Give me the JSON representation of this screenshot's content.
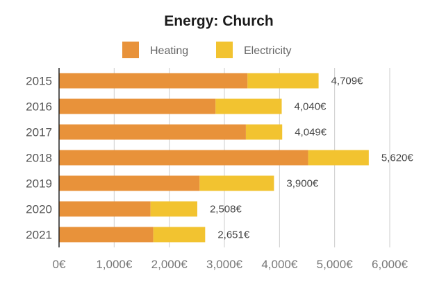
{
  "chart_data": {
    "type": "bar",
    "orientation": "horizontal",
    "stacked": true,
    "title": "Energy: Church",
    "xlabel": "",
    "ylabel": "",
    "categories": [
      "2015",
      "2016",
      "2017",
      "2018",
      "2019",
      "2020",
      "2021"
    ],
    "series": [
      {
        "name": "Heating",
        "color": "#e8923a",
        "values": [
          3420,
          2840,
          3390,
          4520,
          2550,
          1660,
          1710
        ]
      },
      {
        "name": "Electricity",
        "color": "#f2c330",
        "values": [
          1289,
          1200,
          659,
          1100,
          1350,
          848,
          941
        ]
      }
    ],
    "totals": [
      "4,709€",
      "4,040€",
      "4,049€",
      "5,620€",
      "3,900€",
      "2,508€",
      "2,651€"
    ],
    "total_values": [
      4709,
      4040,
      4049,
      5620,
      3900,
      2508,
      2651
    ],
    "xlim": [
      0,
      6000
    ],
    "x_ticks": [
      0,
      1000,
      2000,
      3000,
      4000,
      5000,
      6000
    ],
    "x_tick_labels": [
      "0€",
      "1,000€",
      "2,000€",
      "3,000€",
      "4,000€",
      "5,000€",
      "6,000€"
    ],
    "grid": true,
    "legend_position": "top"
  }
}
